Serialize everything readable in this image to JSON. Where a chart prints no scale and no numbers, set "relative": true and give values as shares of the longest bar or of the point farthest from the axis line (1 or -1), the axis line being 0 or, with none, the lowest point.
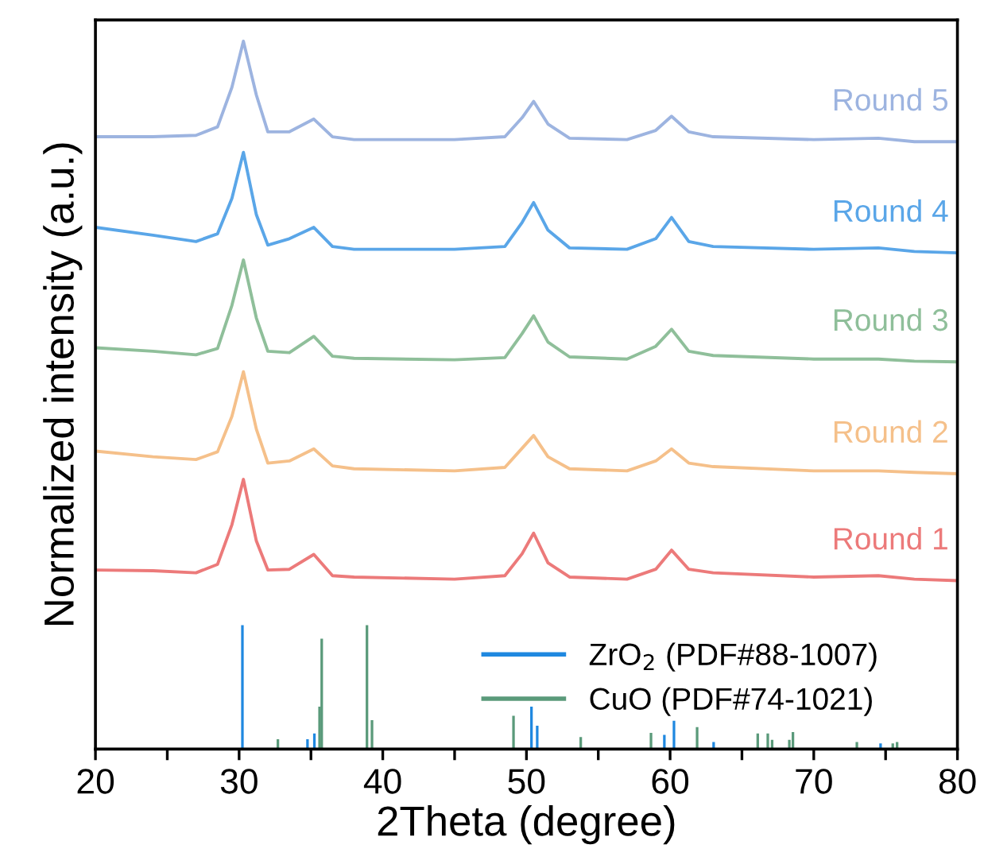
{
  "chart_data": {
    "type": "line",
    "relative": true,
    "xlabel": "2Theta (degree)",
    "ylabel": "Normalized intensity (a.u.)",
    "xlim": [
      20,
      80
    ],
    "xticks": [
      20,
      {
        "value": 25,
        "label": null
      },
      30,
      {
        "value": 35,
        "label": null
      },
      40,
      {
        "value": 45,
        "label": null
      },
      50,
      {
        "value": 55,
        "label": null
      },
      60,
      {
        "value": 65,
        "label": null
      },
      70,
      {
        "value": 75,
        "label": null
      },
      80
    ],
    "tick_labels": "x",
    "grid": false,
    "legend": "bottom right",
    "x": [
      20,
      24,
      27,
      28.5,
      29.5,
      30.3,
      31.2,
      32,
      33.5,
      35.2,
      36.5,
      38,
      45,
      48.5,
      49.7,
      50.5,
      51.5,
      53,
      57,
      59,
      60.1,
      61.3,
      63,
      70,
      74.5,
      77,
      80
    ],
    "series": [
      {
        "name": "Round 1",
        "color": "#ec7a7a",
        "values": [
          0.253,
          0.252,
          0.249,
          0.261,
          0.317,
          0.381,
          0.294,
          0.253,
          0.254,
          0.275,
          0.245,
          0.243,
          0.24,
          0.245,
          0.276,
          0.305,
          0.263,
          0.243,
          0.24,
          0.254,
          0.281,
          0.254,
          0.249,
          0.243,
          0.245,
          0.24,
          0.238
        ]
      },
      {
        "name": "Round 2",
        "color": "#f5c08a",
        "values": [
          0.421,
          0.413,
          0.409,
          0.42,
          0.47,
          0.533,
          0.452,
          0.404,
          0.407,
          0.424,
          0.4,
          0.396,
          0.393,
          0.398,
          0.425,
          0.443,
          0.413,
          0.396,
          0.393,
          0.407,
          0.424,
          0.404,
          0.399,
          0.393,
          0.393,
          0.391,
          0.389
        ]
      },
      {
        "name": "Round 3",
        "color": "#8fbf9a",
        "values": [
          0.567,
          0.562,
          0.557,
          0.566,
          0.627,
          0.691,
          0.609,
          0.562,
          0.56,
          0.583,
          0.555,
          0.552,
          0.55,
          0.553,
          0.587,
          0.612,
          0.575,
          0.554,
          0.551,
          0.569,
          0.593,
          0.562,
          0.556,
          0.551,
          0.551,
          0.548,
          0.547
        ]
      },
      {
        "name": "Round 4",
        "color": "#5aa6e8",
        "values": [
          0.737,
          0.726,
          0.717,
          0.728,
          0.778,
          0.843,
          0.755,
          0.712,
          0.721,
          0.737,
          0.71,
          0.706,
          0.706,
          0.71,
          0.744,
          0.772,
          0.733,
          0.708,
          0.706,
          0.721,
          0.751,
          0.717,
          0.71,
          0.706,
          0.708,
          0.703,
          0.701
        ]
      },
      {
        "name": "Round 5",
        "color": "#9db4e0",
        "values": [
          0.865,
          0.865,
          0.867,
          0.879,
          0.935,
          1,
          0.924,
          0.872,
          0.872,
          0.89,
          0.865,
          0.861,
          0.861,
          0.865,
          0.892,
          0.915,
          0.883,
          0.863,
          0.861,
          0.874,
          0.894,
          0.872,
          0.865,
          0.861,
          0.863,
          0.858,
          0.858
        ]
      },
      {
        "name": "ZrO$_{2}$ (PDF#88-1007)",
        "type": "bar",
        "color": "#1f88e0",
        "x": [
          30.23,
          34.76,
          35.24,
          50.35,
          50.75,
          59.6,
          60.27,
          63.03,
          74.65
        ],
        "values": [
          0.175,
          0.014,
          0.022,
          0.06,
          0.033,
          0.02,
          0.04,
          0.01,
          0.008
        ]
      },
      {
        "name": "CuO (PDF#74-1021)",
        "type": "bar",
        "color": "#5a9a7a",
        "x": [
          32.7,
          35.6,
          35.75,
          38.9,
          39.25,
          49.1,
          53.78,
          58.67,
          61.88,
          66.1,
          66.8,
          67.1,
          68.3,
          68.55,
          73.0,
          75.5,
          75.8
        ],
        "values": [
          0.014,
          0.06,
          0.156,
          0.175,
          0.041,
          0.047,
          0.017,
          0.023,
          0.031,
          0.022,
          0.022,
          0.013,
          0.013,
          0.024,
          0.01,
          0.008,
          0.01
        ]
      }
    ]
  }
}
